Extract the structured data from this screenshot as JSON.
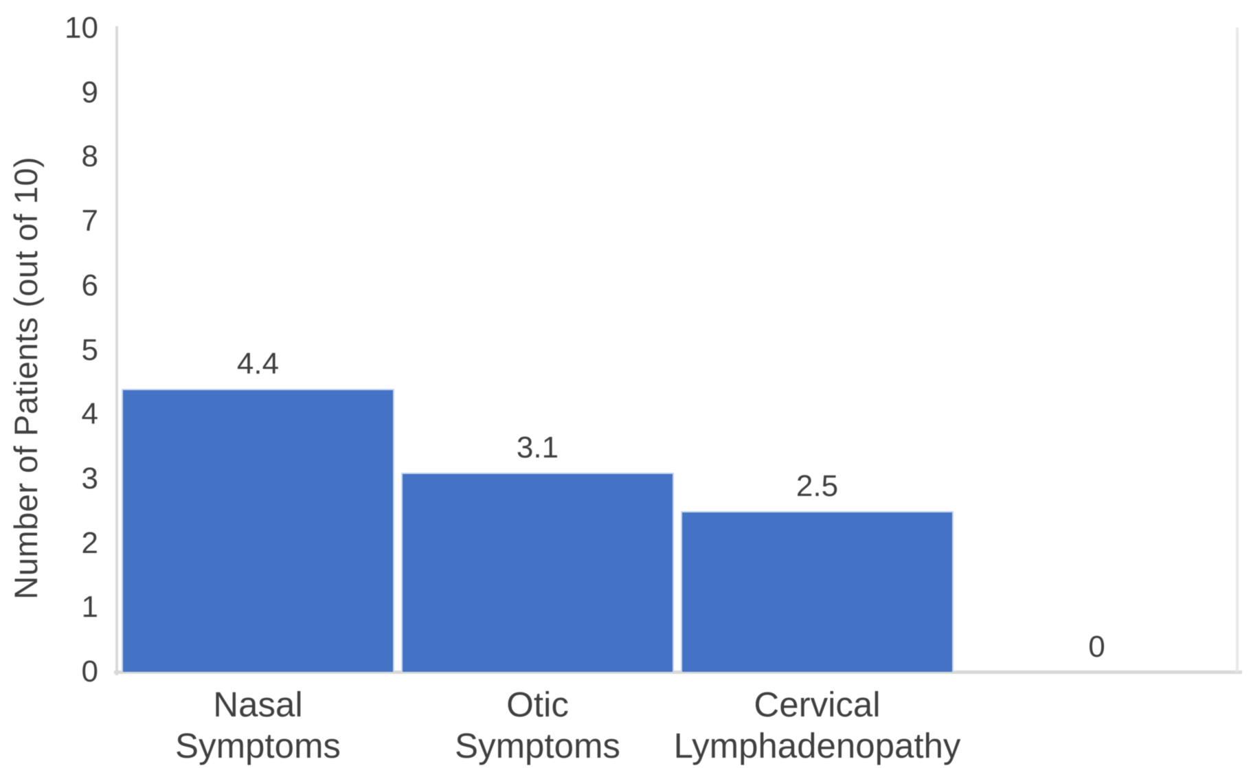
{
  "chart_data": {
    "type": "bar",
    "title": "",
    "xlabel": "",
    "ylabel": "Number of Patients (out of 10)",
    "ylim": [
      0,
      10
    ],
    "yticks": [
      "0",
      "1",
      "2",
      "3",
      "4",
      "5",
      "6",
      "7",
      "8",
      "9",
      "10"
    ],
    "categories": [
      "Nasal Symptoms",
      "Otic Symptoms",
      "Cervical Lymphadenopathy",
      ""
    ],
    "category_lines": [
      [
        "Nasal",
        "Symptoms"
      ],
      [
        "Otic",
        "Symptoms"
      ],
      [
        "Cervical",
        "Lymphadenopathy"
      ],
      [
        ""
      ]
    ],
    "values": [
      4.4,
      3.1,
      2.5,
      0
    ],
    "data_labels": [
      "4.4",
      "3.1",
      "2.5",
      "0"
    ],
    "grid": false,
    "legend": false,
    "colors": {
      "bar_fill": "#4472C4",
      "bar_edge": "#c7d7f0",
      "axis_line": "#d9d9d9",
      "plot_right_border": "#e8e8e8",
      "text": "#404040",
      "background": "#ffffff"
    }
  }
}
